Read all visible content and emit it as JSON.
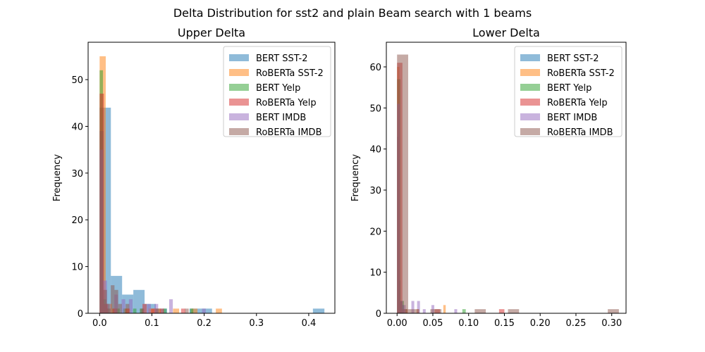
{
  "suptitle": "Delta Distribution for sst2 and plain Beam search with 1 beams",
  "colors": {
    "BERT SST-2": "#1f77b4",
    "RoBERTa SST-2": "#ff7f0e",
    "BERT Yelp": "#2ca02c",
    "RoBERTa Yelp": "#d62728",
    "BERT IMDB": "#9467bd",
    "RoBERTa IMDB": "#8c564b"
  },
  "chart_data": [
    {
      "type": "histogram",
      "title": "Upper Delta",
      "xlabel": "",
      "ylabel": "Frequency",
      "xlim": [
        -0.022,
        0.45
      ],
      "ylim": [
        0,
        58
      ],
      "xticks": [
        0.0,
        0.1,
        0.2,
        0.3,
        0.4
      ],
      "xtick_labels": [
        "0.0",
        "0.1",
        "0.2",
        "0.3",
        "0.4"
      ],
      "yticks": [
        0,
        10,
        20,
        30,
        40,
        50
      ],
      "ytick_labels": [
        "0",
        "10",
        "20",
        "30",
        "40",
        "50"
      ],
      "legend": [
        "BERT SST-2",
        "RoBERTa SST-2",
        "BERT Yelp",
        "RoBERTa Yelp",
        "BERT IMDB",
        "RoBERTa IMDB"
      ],
      "legend_position": "top-right",
      "series": [
        {
          "name": "BERT SST-2",
          "bins": [
            [
              0.0,
              0.0215,
              44
            ],
            [
              0.0215,
              0.043,
              8
            ],
            [
              0.043,
              0.0645,
              4
            ],
            [
              0.0645,
              0.086,
              5
            ],
            [
              0.086,
              0.1075,
              2
            ],
            [
              0.1075,
              0.129,
              1
            ],
            [
              0.172,
              0.1935,
              1
            ],
            [
              0.1935,
              0.215,
              1
            ],
            [
              0.408,
              0.43,
              1
            ]
          ]
        },
        {
          "name": "RoBERTa SST-2",
          "bins": [
            [
              0.0,
              0.0117,
              55
            ],
            [
              0.0117,
              0.0234,
              2
            ],
            [
              0.0234,
              0.0351,
              1
            ],
            [
              0.0468,
              0.0585,
              1
            ],
            [
              0.0936,
              0.1053,
              1
            ],
            [
              0.1053,
              0.117,
              1
            ],
            [
              0.1404,
              0.1521,
              1
            ],
            [
              0.1755,
              0.1872,
              1
            ],
            [
              0.2223,
              0.234,
              1
            ]
          ]
        },
        {
          "name": "BERT Yelp",
          "bins": [
            [
              0.0,
              0.0064,
              52
            ],
            [
              0.0064,
              0.0128,
              3
            ],
            [
              0.0128,
              0.0192,
              2
            ],
            [
              0.032,
              0.0384,
              1
            ],
            [
              0.0448,
              0.0512,
              1
            ],
            [
              0.064,
              0.0704,
              1
            ],
            [
              0.0768,
              0.0832,
              1
            ],
            [
              0.1216,
              0.128,
              1
            ],
            [
              0.1728,
              0.1792,
              1
            ]
          ]
        },
        {
          "name": "RoBERTa Yelp",
          "bins": [
            [
              0.0,
              0.0082,
              47
            ],
            [
              0.0082,
              0.0164,
              2
            ],
            [
              0.0246,
              0.0328,
              1
            ],
            [
              0.0492,
              0.0574,
              1
            ],
            [
              0.082,
              0.0902,
              2
            ],
            [
              0.0984,
              0.1066,
              1
            ],
            [
              0.1148,
              0.123,
              1
            ],
            [
              0.1558,
              0.164,
              1
            ]
          ]
        },
        {
          "name": "BERT IMDB",
          "bins": [
            [
              0.0,
              0.007,
              35
            ],
            [
              0.007,
              0.014,
              7
            ],
            [
              0.014,
              0.021,
              2
            ],
            [
              0.028,
              0.035,
              4
            ],
            [
              0.042,
              0.049,
              3
            ],
            [
              0.056,
              0.063,
              3
            ],
            [
              0.091,
              0.098,
              2
            ],
            [
              0.105,
              0.112,
              2
            ],
            [
              0.133,
              0.14,
              3
            ],
            [
              0.196,
              0.203,
              1
            ]
          ]
        },
        {
          "name": "RoBERTa IMDB",
          "bins": [
            [
              0.0,
              0.0071,
              39
            ],
            [
              0.0071,
              0.0142,
              5
            ],
            [
              0.0142,
              0.0213,
              1
            ],
            [
              0.0213,
              0.0284,
              6
            ],
            [
              0.0284,
              0.0355,
              5
            ],
            [
              0.0355,
              0.0426,
              2
            ],
            [
              0.0497,
              0.0568,
              2
            ],
            [
              0.0781,
              0.0852,
              1
            ],
            [
              0.1065,
              0.1136,
              1
            ],
            [
              0.1633,
              0.1704,
              1
            ]
          ]
        }
      ]
    },
    {
      "type": "histogram",
      "title": "Lower Delta",
      "xlabel": "",
      "ylabel": "Frequency",
      "xlim": [
        -0.015,
        0.32
      ],
      "ylim": [
        0,
        66
      ],
      "xticks": [
        0.0,
        0.05,
        0.1,
        0.15,
        0.2,
        0.25,
        0.3
      ],
      "xtick_labels": [
        "0.00",
        "0.05",
        "0.10",
        "0.15",
        "0.20",
        "0.25",
        "0.30"
      ],
      "yticks": [
        0,
        10,
        20,
        30,
        40,
        50,
        60
      ],
      "ytick_labels": [
        "0",
        "10",
        "20",
        "30",
        "40",
        "50",
        "60"
      ],
      "legend": [
        "BERT SST-2",
        "RoBERTa SST-2",
        "BERT Yelp",
        "RoBERTa Yelp",
        "BERT IMDB",
        "RoBERTa IMDB"
      ],
      "legend_position": "top-right",
      "series": [
        {
          "name": "BERT SST-2",
          "bins": [
            [
              0.0,
              0.0024,
              43
            ],
            [
              0.0024,
              0.0048,
              8
            ],
            [
              0.0048,
              0.0072,
              3
            ],
            [
              0.0072,
              0.0096,
              2
            ]
          ]
        },
        {
          "name": "RoBERTa SST-2",
          "bins": [
            [
              0.0,
              0.0034,
              60
            ],
            [
              0.0034,
              0.0068,
              3
            ],
            [
              0.0272,
              0.0306,
              1
            ],
            [
              0.0646,
              0.068,
              2
            ]
          ]
        },
        {
          "name": "BERT Yelp",
          "bins": [
            [
              0.0,
              0.0048,
              57
            ],
            [
              0.0048,
              0.0096,
              3
            ],
            [
              0.0096,
              0.0144,
              1
            ],
            [
              0.0912,
              0.096,
              1
            ]
          ]
        },
        {
          "name": "RoBERTa Yelp",
          "bins": [
            [
              0.0,
              0.0075,
              61
            ],
            [
              0.0075,
              0.015,
              1
            ],
            [
              0.0525,
              0.06,
              1
            ],
            [
              0.1425,
              0.15,
              1
            ]
          ]
        },
        {
          "name": "BERT IMDB",
          "bins": [
            [
              0.0,
              0.004,
              51
            ],
            [
              0.004,
              0.008,
              3
            ],
            [
              0.008,
              0.012,
              2
            ],
            [
              0.02,
              0.024,
              3
            ],
            [
              0.028,
              0.032,
              3
            ],
            [
              0.036,
              0.04,
              1
            ],
            [
              0.048,
              0.052,
              2
            ],
            [
              0.08,
              0.084,
              1
            ]
          ]
        },
        {
          "name": "RoBERTa IMDB",
          "bins": [
            [
              0.0,
              0.0155,
              63
            ],
            [
              0.0155,
              0.031,
              1
            ],
            [
              0.0465,
              0.062,
              1
            ],
            [
              0.1085,
              0.124,
              1
            ],
            [
              0.155,
              0.1705,
              1
            ],
            [
              0.2945,
              0.31,
              1
            ]
          ]
        }
      ]
    }
  ]
}
